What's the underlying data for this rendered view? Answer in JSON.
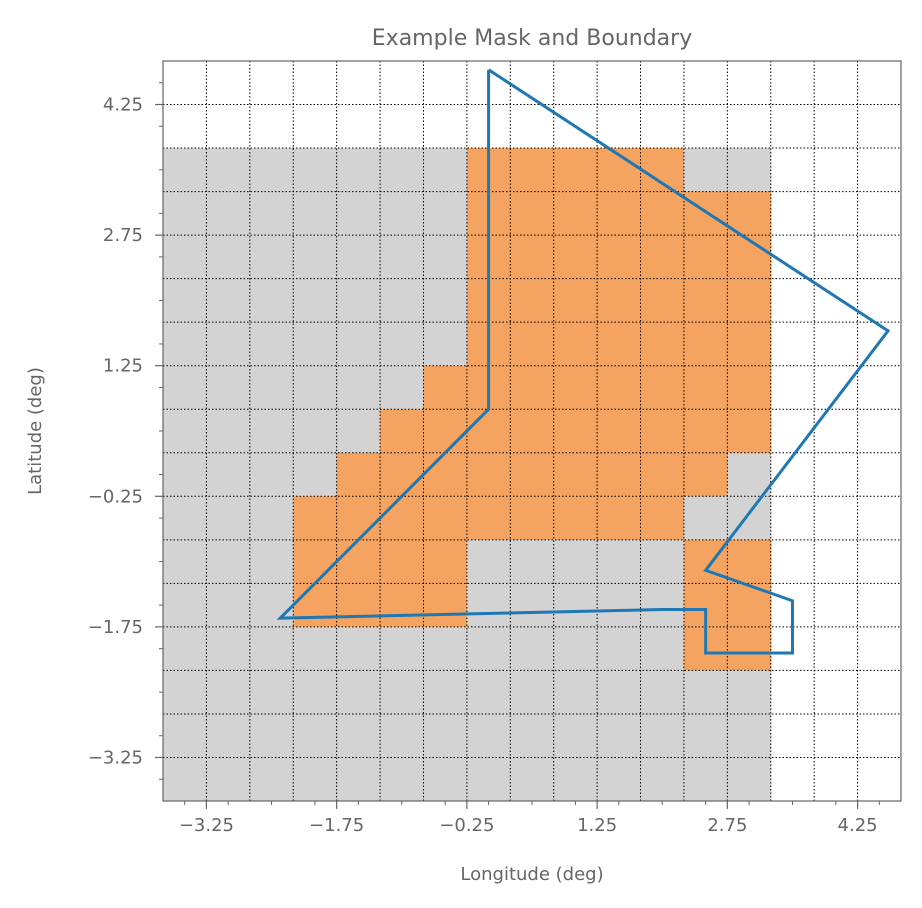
{
  "chart_data": {
    "type": "heatmap",
    "title": "Example Mask and Boundary",
    "xlabel": "Longitude (deg)",
    "ylabel": "Latitude (deg)",
    "xlim": [
      -3.75,
      4.75
    ],
    "ylim": [
      -3.75,
      4.75
    ],
    "xticks": [
      -3.25,
      -1.75,
      -0.25,
      1.25,
      2.75,
      4.25
    ],
    "yticks": [
      -3.25,
      -1.75,
      -0.25,
      1.25,
      2.75,
      4.25
    ],
    "xtick_labels": [
      "−3.25",
      "−1.75",
      "−0.25",
      "1.25",
      "2.75",
      "4.25"
    ],
    "ytick_labels": [
      "−3.25",
      "−1.75",
      "−0.25",
      "1.25",
      "2.75",
      "4.25"
    ],
    "grid": true,
    "grid_step": 0.5,
    "cell_size": 0.5,
    "mask_colors": {
      "outside": "#d3d3d3",
      "inside": "#f4a460"
    },
    "boundary_color": "#1f77b4",
    "mask_columns_x": [
      -3.5,
      -3.0,
      -2.5,
      -2.0,
      -1.5,
      -1.0,
      -0.5,
      0.0,
      0.5,
      1.0,
      1.5,
      2.0,
      2.5,
      3.0
    ],
    "mask_rows_y": [
      3.5,
      3.0,
      2.5,
      2.0,
      1.5,
      1.0,
      0.5,
      0.0,
      -0.5,
      -1.0,
      -1.5,
      -2.0,
      -2.5,
      -3.0,
      -3.5
    ],
    "mask": [
      [
        0,
        0,
        0,
        0,
        0,
        0,
        0,
        1,
        1,
        1,
        1,
        1,
        0,
        0
      ],
      [
        0,
        0,
        0,
        0,
        0,
        0,
        0,
        1,
        1,
        1,
        1,
        1,
        1,
        1
      ],
      [
        0,
        0,
        0,
        0,
        0,
        0,
        0,
        1,
        1,
        1,
        1,
        1,
        1,
        1
      ],
      [
        0,
        0,
        0,
        0,
        0,
        0,
        0,
        1,
        1,
        1,
        1,
        1,
        1,
        1
      ],
      [
        0,
        0,
        0,
        0,
        0,
        0,
        0,
        1,
        1,
        1,
        1,
        1,
        1,
        1
      ],
      [
        0,
        0,
        0,
        0,
        0,
        0,
        1,
        1,
        1,
        1,
        1,
        1,
        1,
        1
      ],
      [
        0,
        0,
        0,
        0,
        0,
        1,
        1,
        1,
        1,
        1,
        1,
        1,
        1,
        1
      ],
      [
        0,
        0,
        0,
        0,
        1,
        1,
        1,
        1,
        1,
        1,
        1,
        1,
        1,
        0
      ],
      [
        0,
        0,
        0,
        1,
        1,
        1,
        1,
        1,
        1,
        1,
        1,
        1,
        0,
        0
      ],
      [
        0,
        0,
        0,
        1,
        1,
        1,
        1,
        0,
        0,
        0,
        0,
        0,
        1,
        1
      ],
      [
        0,
        0,
        0,
        1,
        1,
        1,
        1,
        0,
        0,
        0,
        0,
        0,
        1,
        1
      ],
      [
        0,
        0,
        0,
        0,
        0,
        0,
        0,
        0,
        0,
        0,
        0,
        0,
        1,
        1
      ],
      [
        0,
        0,
        0,
        0,
        0,
        0,
        0,
        0,
        0,
        0,
        0,
        0,
        0,
        0
      ],
      [
        0,
        0,
        0,
        0,
        0,
        0,
        0,
        0,
        0,
        0,
        0,
        0,
        0,
        0
      ],
      [
        0,
        0,
        0,
        0,
        0,
        0,
        0,
        0,
        0,
        0,
        0,
        0,
        0,
        0
      ]
    ],
    "boundary": [
      [
        0.0,
        4.65
      ],
      [
        4.6,
        1.65
      ],
      [
        2.5,
        -1.1
      ],
      [
        3.5,
        -1.45
      ],
      [
        3.5,
        -2.05
      ],
      [
        2.5,
        -2.05
      ],
      [
        2.5,
        -1.55
      ],
      [
        2.0,
        -1.55
      ],
      [
        -2.4,
        -1.65
      ],
      [
        0.0,
        0.75
      ],
      [
        0.0,
        4.65
      ]
    ]
  }
}
